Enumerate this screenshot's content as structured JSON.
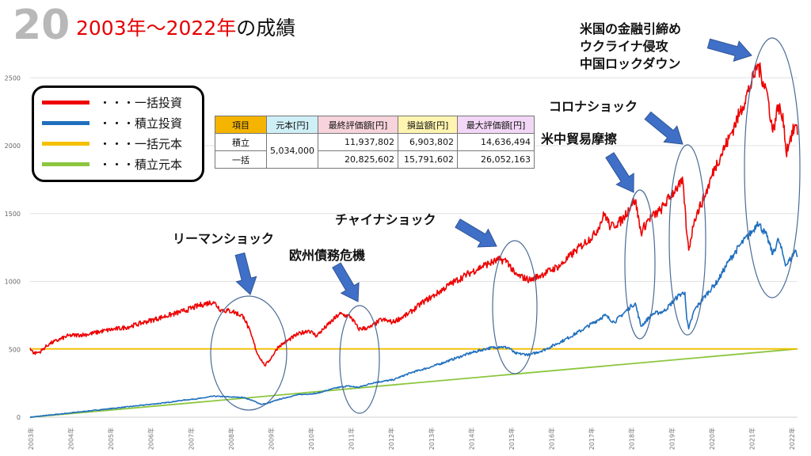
{
  "slide_number": "20",
  "title_red": "2003年～2022年",
  "title_black": "の成績",
  "legend": [
    {
      "label": "・・・一括投資",
      "color": "#ee0000"
    },
    {
      "label": "・・・積立投資",
      "color": "#1f6fbf"
    },
    {
      "label": "・・・一括元本",
      "color": "#f5c000"
    },
    {
      "label": "・・・積立元本",
      "color": "#8cc63f"
    }
  ],
  "table": {
    "headers": [
      "項目",
      "元本[円]",
      "最終評価額[円]",
      "損益額[円]",
      "最大評価額[円]"
    ],
    "rows": [
      {
        "name": "積立",
        "principal": "5,034,000",
        "final": "11,937,802",
        "profit": "6,903,802",
        "max": "14,636,494"
      },
      {
        "name": "一括",
        "principal": "5,034,000",
        "final": "20,825,602",
        "profit": "15,791,602",
        "max": "26,052,163"
      }
    ]
  },
  "annotations": [
    {
      "label": "リーマンショック",
      "period": "2008"
    },
    {
      "label": "欧州債務危機",
      "period": "2011"
    },
    {
      "label": "チャイナショック",
      "period": "2015"
    },
    {
      "label": "米中貿易摩擦",
      "period": "2018"
    },
    {
      "label": "コロナショック",
      "period": "2020"
    },
    {
      "label": "米国の金融引締め",
      "period": "2022"
    },
    {
      "label": "ウクライナ侵攻",
      "period": "2022"
    },
    {
      "label": "中国ロックダウン",
      "period": "2022"
    }
  ],
  "chart_data": {
    "type": "line",
    "ylim": [
      0,
      3000
    ],
    "y_ticks": [
      0,
      500,
      1000,
      1500,
      2000,
      2500
    ],
    "x_ticks": [
      "2003年",
      "2004年",
      "2005年",
      "2006年",
      "2007年",
      "2008年",
      "2009年",
      "2010年",
      "2011年",
      "2012年",
      "2013年",
      "2014年",
      "2015年",
      "2016年",
      "2017年",
      "2018年",
      "2019年",
      "2020年",
      "2021年",
      "2022年"
    ],
    "series": [
      {
        "color": "#ee0000",
        "points": [
          [
            2003.0,
            510
          ],
          [
            2003.1,
            470
          ],
          [
            2003.25,
            480
          ],
          [
            2003.5,
            540
          ],
          [
            2004.0,
            600
          ],
          [
            2004.5,
            610
          ],
          [
            2005.0,
            640
          ],
          [
            2005.5,
            660
          ],
          [
            2006.0,
            700
          ],
          [
            2006.5,
            740
          ],
          [
            2007.0,
            780
          ],
          [
            2007.5,
            830
          ],
          [
            2007.8,
            850
          ],
          [
            2008.0,
            790
          ],
          [
            2008.3,
            780
          ],
          [
            2008.6,
            740
          ],
          [
            2008.8,
            600
          ],
          [
            2008.95,
            470
          ],
          [
            2009.15,
            380
          ],
          [
            2009.3,
            430
          ],
          [
            2009.5,
            520
          ],
          [
            2010.0,
            610
          ],
          [
            2010.3,
            640
          ],
          [
            2010.5,
            600
          ],
          [
            2010.8,
            680
          ],
          [
            2011.1,
            760
          ],
          [
            2011.4,
            740
          ],
          [
            2011.6,
            650
          ],
          [
            2011.9,
            660
          ],
          [
            2012.2,
            720
          ],
          [
            2012.5,
            700
          ],
          [
            2012.9,
            760
          ],
          [
            2013.3,
            850
          ],
          [
            2013.6,
            900
          ],
          [
            2014.0,
            980
          ],
          [
            2014.5,
            1060
          ],
          [
            2014.9,
            1120
          ],
          [
            2015.3,
            1160
          ],
          [
            2015.5,
            1150
          ],
          [
            2015.7,
            1050
          ],
          [
            2016.1,
            1010
          ],
          [
            2016.4,
            1050
          ],
          [
            2016.9,
            1120
          ],
          [
            2017.3,
            1230
          ],
          [
            2017.8,
            1350
          ],
          [
            2018.05,
            1500
          ],
          [
            2018.2,
            1400
          ],
          [
            2018.5,
            1450
          ],
          [
            2018.75,
            1570
          ],
          [
            2018.85,
            1600
          ],
          [
            2019.0,
            1360
          ],
          [
            2019.2,
            1460
          ],
          [
            2019.5,
            1520
          ],
          [
            2019.9,
            1680
          ],
          [
            2020.1,
            1730
          ],
          [
            2020.2,
            1350
          ],
          [
            2020.25,
            1230
          ],
          [
            2020.4,
            1460
          ],
          [
            2020.7,
            1650
          ],
          [
            2020.95,
            1850
          ],
          [
            2021.3,
            2050
          ],
          [
            2021.6,
            2250
          ],
          [
            2021.95,
            2500
          ],
          [
            2022.05,
            2600
          ],
          [
            2022.3,
            2400
          ],
          [
            2022.45,
            2100
          ],
          [
            2022.6,
            2300
          ],
          [
            2022.75,
            2150
          ],
          [
            2022.8,
            1950
          ],
          [
            2022.9,
            2050
          ],
          [
            2023.05,
            2150
          ],
          [
            2023.1,
            2080
          ]
        ]
      },
      {
        "color": "#1f6fbf",
        "points": [
          [
            2003.0,
            0
          ],
          [
            2003.5,
            15
          ],
          [
            2004.0,
            30
          ],
          [
            2004.5,
            45
          ],
          [
            2005.0,
            60
          ],
          [
            2005.5,
            75
          ],
          [
            2006.0,
            90
          ],
          [
            2006.5,
            105
          ],
          [
            2007.0,
            125
          ],
          [
            2007.5,
            140
          ],
          [
            2007.8,
            155
          ],
          [
            2008.2,
            150
          ],
          [
            2008.6,
            145
          ],
          [
            2008.85,
            120
          ],
          [
            2009.05,
            95
          ],
          [
            2009.2,
            100
          ],
          [
            2009.5,
            130
          ],
          [
            2010.0,
            165
          ],
          [
            2010.5,
            175
          ],
          [
            2011.0,
            215
          ],
          [
            2011.3,
            230
          ],
          [
            2011.6,
            220
          ],
          [
            2012.0,
            255
          ],
          [
            2012.5,
            275
          ],
          [
            2013.0,
            330
          ],
          [
            2013.5,
            370
          ],
          [
            2014.0,
            420
          ],
          [
            2014.5,
            470
          ],
          [
            2014.95,
            505
          ],
          [
            2015.3,
            520
          ],
          [
            2015.55,
            510
          ],
          [
            2015.7,
            470
          ],
          [
            2016.1,
            460
          ],
          [
            2016.5,
            500
          ],
          [
            2017.0,
            570
          ],
          [
            2017.5,
            650
          ],
          [
            2018.05,
            750
          ],
          [
            2018.3,
            700
          ],
          [
            2018.75,
            820
          ],
          [
            2018.85,
            840
          ],
          [
            2019.0,
            670
          ],
          [
            2019.3,
            760
          ],
          [
            2019.6,
            780
          ],
          [
            2020.0,
            900
          ],
          [
            2020.15,
            920
          ],
          [
            2020.2,
            720
          ],
          [
            2020.25,
            650
          ],
          [
            2020.4,
            790
          ],
          [
            2020.7,
            900
          ],
          [
            2021.0,
            1000
          ],
          [
            2021.3,
            1150
          ],
          [
            2021.6,
            1270
          ],
          [
            2021.95,
            1380
          ],
          [
            2022.05,
            1440
          ],
          [
            2022.3,
            1330
          ],
          [
            2022.45,
            1200
          ],
          [
            2022.6,
            1310
          ],
          [
            2022.8,
            1120
          ],
          [
            2022.95,
            1180
          ],
          [
            2023.05,
            1230
          ],
          [
            2023.1,
            1180
          ]
        ]
      },
      {
        "color": "#f5c000",
        "points": [
          [
            2003.0,
            503
          ],
          [
            2023.1,
            503
          ]
        ]
      },
      {
        "color": "#8cc63f",
        "points": [
          [
            2003.0,
            0
          ],
          [
            2023.1,
            503
          ]
        ]
      }
    ]
  }
}
